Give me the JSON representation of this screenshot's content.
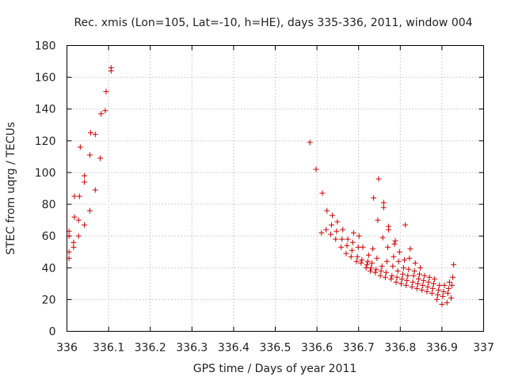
{
  "chart_data": {
    "type": "scatter",
    "title": "Rec. xmis (Lon=105, Lat=-10, h=HE), days 335-336, 2011, window 004",
    "xlabel": "GPS time / Days of year 2011",
    "ylabel": "STEC from uqrg / TECUs",
    "xlim": [
      336,
      337
    ],
    "ylim": [
      0,
      180
    ],
    "xticks": [
      336,
      336.1,
      336.2,
      336.3,
      336.4,
      336.5,
      336.6,
      336.7,
      336.8,
      336.9,
      337
    ],
    "xtick_labels": [
      "336",
      "336.1",
      "336.2",
      "336.3",
      "336.4",
      "336.5",
      "336.6",
      "336.7",
      "336.8",
      "336.9",
      "337"
    ],
    "yticks": [
      0,
      20,
      40,
      60,
      80,
      100,
      120,
      140,
      160,
      180
    ],
    "ytick_labels": [
      "0",
      "20",
      "40",
      "60",
      "80",
      "100",
      "120",
      "140",
      "160",
      "180"
    ],
    "grid": true,
    "marker": "+",
    "color": "#cc0000",
    "series": [
      {
        "name": "STEC",
        "points": [
          [
            336.005,
            46
          ],
          [
            336.005,
            50
          ],
          [
            336.005,
            60
          ],
          [
            336.005,
            63
          ],
          [
            336.016,
            53
          ],
          [
            336.016,
            56
          ],
          [
            336.018,
            72
          ],
          [
            336.018,
            85
          ],
          [
            336.028,
            60
          ],
          [
            336.028,
            70
          ],
          [
            336.03,
            85
          ],
          [
            336.032,
            116
          ],
          [
            336.042,
            67
          ],
          [
            336.042,
            94
          ],
          [
            336.042,
            98
          ],
          [
            336.055,
            76
          ],
          [
            336.055,
            111
          ],
          [
            336.057,
            125
          ],
          [
            336.068,
            89
          ],
          [
            336.068,
            124
          ],
          [
            336.08,
            109
          ],
          [
            336.082,
            137
          ],
          [
            336.092,
            139
          ],
          [
            336.094,
            151
          ],
          [
            336.106,
            164
          ],
          [
            336.106,
            166
          ],
          [
            336.583,
            119
          ],
          [
            336.598,
            102
          ],
          [
            336.611,
            62
          ],
          [
            336.613,
            87
          ],
          [
            336.622,
            64
          ],
          [
            336.624,
            76
          ],
          [
            336.633,
            61
          ],
          [
            336.635,
            67
          ],
          [
            336.637,
            73
          ],
          [
            336.645,
            58
          ],
          [
            336.647,
            63
          ],
          [
            336.649,
            69
          ],
          [
            336.658,
            53
          ],
          [
            336.66,
            58
          ],
          [
            336.662,
            64
          ],
          [
            336.67,
            49
          ],
          [
            336.672,
            54
          ],
          [
            336.674,
            58
          ],
          [
            336.682,
            47
          ],
          [
            336.684,
            51
          ],
          [
            336.686,
            56
          ],
          [
            336.688,
            62
          ],
          [
            336.695,
            44
          ],
          [
            336.697,
            47
          ],
          [
            336.699,
            53
          ],
          [
            336.701,
            60
          ],
          [
            336.706,
            43
          ],
          [
            336.708,
            45
          ],
          [
            336.71,
            53
          ],
          [
            336.718,
            40
          ],
          [
            336.72,
            42
          ],
          [
            336.722,
            44
          ],
          [
            336.724,
            48
          ],
          [
            336.728,
            38
          ],
          [
            336.73,
            40
          ],
          [
            336.732,
            43
          ],
          [
            336.734,
            52
          ],
          [
            336.736,
            84
          ],
          [
            336.74,
            37
          ],
          [
            336.742,
            39
          ],
          [
            336.744,
            46
          ],
          [
            336.746,
            70
          ],
          [
            336.748,
            96
          ],
          [
            336.752,
            35
          ],
          [
            336.754,
            38
          ],
          [
            336.756,
            41
          ],
          [
            336.758,
            59
          ],
          [
            336.76,
            78
          ],
          [
            336.76,
            81
          ],
          [
            336.764,
            34
          ],
          [
            336.766,
            37
          ],
          [
            336.768,
            44
          ],
          [
            336.77,
            53
          ],
          [
            336.772,
            64
          ],
          [
            336.772,
            66
          ],
          [
            336.778,
            33
          ],
          [
            336.78,
            35
          ],
          [
            336.782,
            41
          ],
          [
            336.784,
            47
          ],
          [
            336.786,
            55
          ],
          [
            336.788,
            57
          ],
          [
            336.79,
            31
          ],
          [
            336.792,
            34
          ],
          [
            336.794,
            38
          ],
          [
            336.796,
            44
          ],
          [
            336.798,
            50
          ],
          [
            336.802,
            30
          ],
          [
            336.804,
            33
          ],
          [
            336.806,
            36
          ],
          [
            336.808,
            40
          ],
          [
            336.81,
            45
          ],
          [
            336.812,
            67
          ],
          [
            336.814,
            29
          ],
          [
            336.816,
            32
          ],
          [
            336.818,
            35
          ],
          [
            336.82,
            39
          ],
          [
            336.822,
            46
          ],
          [
            336.824,
            52
          ],
          [
            336.828,
            28
          ],
          [
            336.83,
            31
          ],
          [
            336.832,
            35
          ],
          [
            336.834,
            38
          ],
          [
            336.836,
            43
          ],
          [
            336.84,
            27
          ],
          [
            336.842,
            30
          ],
          [
            336.844,
            33
          ],
          [
            336.846,
            36
          ],
          [
            336.848,
            40
          ],
          [
            336.852,
            26
          ],
          [
            336.854,
            29
          ],
          [
            336.856,
            32
          ],
          [
            336.858,
            35
          ],
          [
            336.864,
            25
          ],
          [
            336.866,
            28
          ],
          [
            336.868,
            31
          ],
          [
            336.87,
            34
          ],
          [
            336.876,
            24
          ],
          [
            336.878,
            27
          ],
          [
            336.88,
            30
          ],
          [
            336.882,
            33
          ],
          [
            336.888,
            20
          ],
          [
            336.89,
            23
          ],
          [
            336.892,
            26
          ],
          [
            336.894,
            29
          ],
          [
            336.9,
            17
          ],
          [
            336.902,
            22
          ],
          [
            336.904,
            25
          ],
          [
            336.906,
            29
          ],
          [
            336.912,
            18
          ],
          [
            336.914,
            24
          ],
          [
            336.916,
            27
          ],
          [
            336.918,
            31
          ],
          [
            336.922,
            21
          ],
          [
            336.924,
            29
          ],
          [
            336.926,
            34
          ],
          [
            336.928,
            42
          ]
        ]
      }
    ]
  }
}
